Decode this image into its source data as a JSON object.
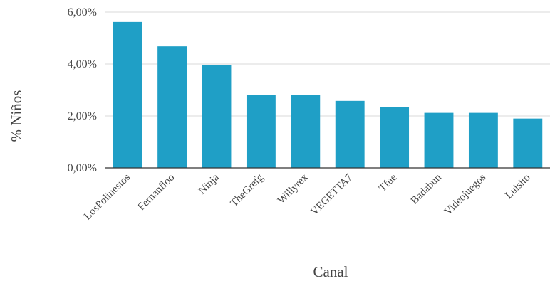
{
  "chart_data": {
    "type": "bar",
    "title": "",
    "xlabel": "Canal",
    "ylabel": "% Niños",
    "categories": [
      "LosPolinesios",
      "Fernanfloo",
      "Ninja",
      "TheGrefg",
      "Willyrex",
      "VEGETTA7",
      "Tfue",
      "Badabun",
      "Videojuegos",
      "Luisito"
    ],
    "values": [
      5.62,
      4.68,
      3.96,
      2.8,
      2.8,
      2.58,
      2.35,
      2.12,
      2.12,
      1.9
    ],
    "value_format": "percent_2dp_comma",
    "ylim": [
      0,
      6
    ],
    "yticks": [
      "0,00%",
      "2,00%",
      "4,00%",
      "6,00%"
    ],
    "grid": true,
    "legend": "none",
    "bar_color": "#1f9fc6",
    "grid_color": "#d9d9d9",
    "axis_color": "#333333"
  }
}
